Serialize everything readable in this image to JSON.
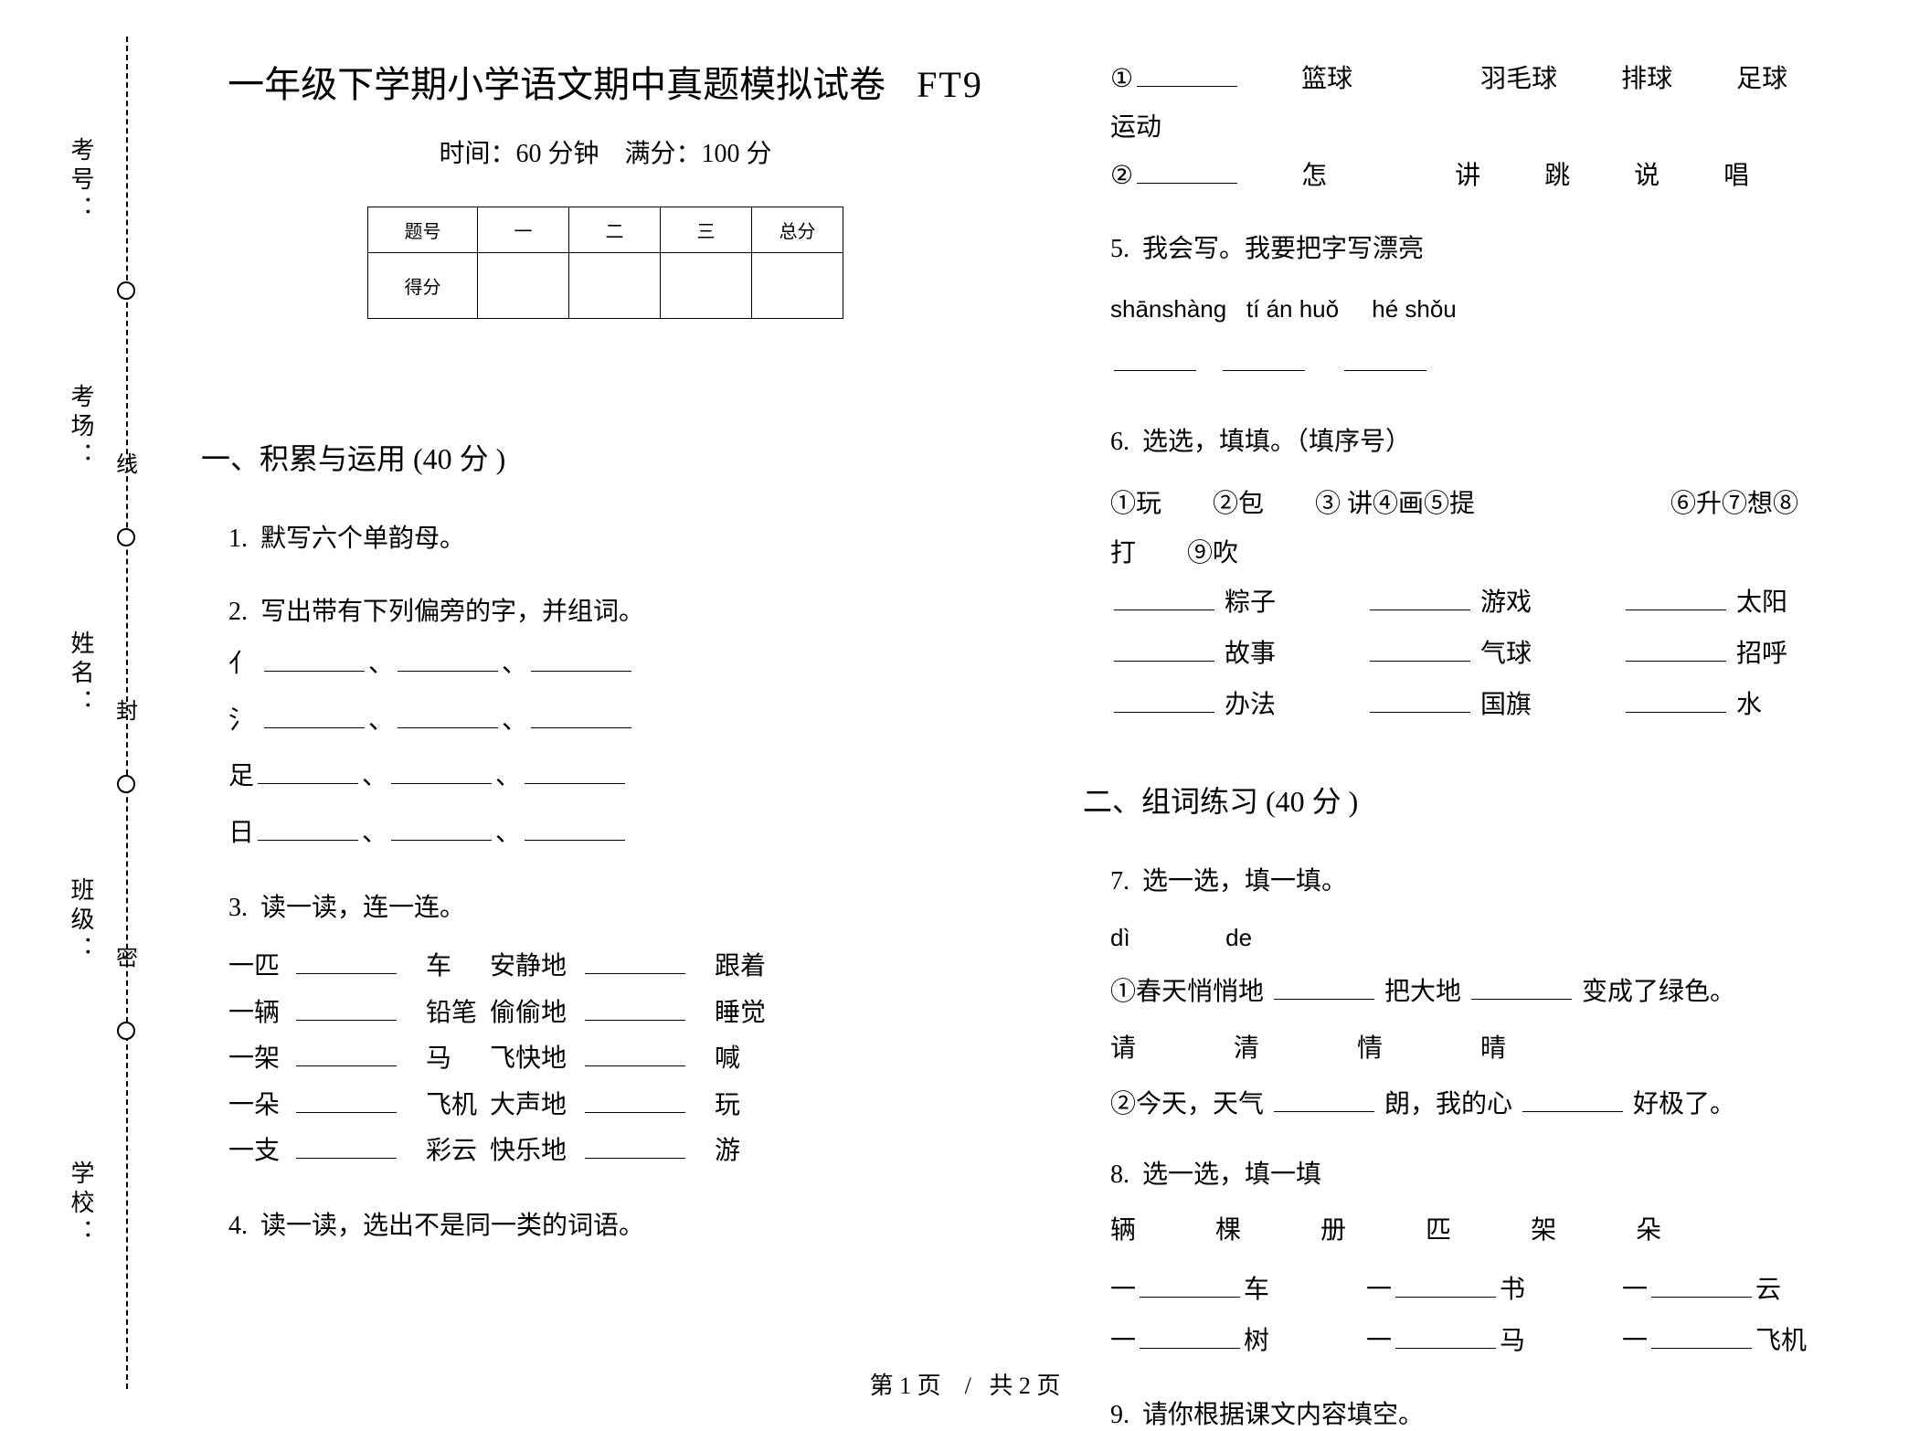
{
  "binding": {
    "labels": [
      "考号：",
      "考场：",
      "姓名：",
      "班级：",
      "学校："
    ],
    "chars": [
      "线",
      "封",
      "密"
    ]
  },
  "header": {
    "title_main": "一年级下学期小学语文期中真题模拟试卷",
    "title_code": "FT9",
    "time_label": "时间：",
    "time_value": "60 分钟",
    "full_label": "满分：",
    "full_value": "100 分"
  },
  "score_table": {
    "headers": [
      "题号",
      "一",
      "二",
      "三",
      "总分"
    ],
    "row_label": "得分"
  },
  "sections": {
    "s1": {
      "title": "一、积累与运用  (40 分 )"
    },
    "s2": {
      "title": "二、组词练习  (40 分 )"
    }
  },
  "q1": {
    "num": "1.",
    "text": "默写六个单韵母。"
  },
  "q2": {
    "num": "2.",
    "text": "写出带有下列偏旁的字，并组词。",
    "rads": [
      "亻",
      "氵",
      "足",
      "日"
    ]
  },
  "q3": {
    "num": "3.",
    "text": "读一读，连一连。",
    "left": [
      "一匹",
      "一辆",
      "一架",
      "一朵",
      "一支"
    ],
    "mid1": [
      "车",
      "铅笔",
      "马",
      "飞机",
      "彩云"
    ],
    "mid2": [
      "安静地",
      "偷偷地",
      "飞快地",
      "大声地",
      "快乐地"
    ],
    "right": [
      "跟着",
      "睡觉",
      "喊",
      "玩",
      "游"
    ]
  },
  "q4": {
    "num": "4.",
    "text": "读一读，选出不是同一类的词语。",
    "row1": [
      "篮球",
      "羽毛球",
      "排球",
      "足球",
      "运动"
    ],
    "row2": [
      "怎",
      "讲",
      "跳",
      "说",
      "唱"
    ]
  },
  "q5": {
    "num": "5.",
    "text": "我会写。我要把字写漂亮",
    "pinyin": [
      "shānshàng",
      "tí án huǒ",
      "hé shǒu"
    ]
  },
  "q6": {
    "num": "6.",
    "text": "选选，填填。（填序号）",
    "choices_a": "①玩　　②包　　③ 讲④画⑤提",
    "choices_b": "⑥升⑦想⑧",
    "choices_c": "打　　⑨吹",
    "words": [
      "粽子",
      "游戏",
      "太阳",
      "故事",
      "气球",
      "招呼",
      "办法",
      "国旗",
      "水"
    ]
  },
  "q7": {
    "num": "7.",
    "text": "选一选，填一填。",
    "p1_a": "dì",
    "p1_b": "de",
    "line1_a": "①春天悄悄地",
    "line1_b": "把大地",
    "line1_c": "变成了绿色。",
    "opts2": [
      "请",
      "清",
      "情",
      "晴"
    ],
    "line2_a": "②今天，天气",
    "line2_b": "朗，我的心",
    "line2_c": "好极了。"
  },
  "q8": {
    "num": "8.",
    "text": "选一选，填一填",
    "opts": [
      "辆",
      "棵",
      "册",
      "匹",
      "架",
      "朵"
    ],
    "items": [
      "车",
      "书",
      "云",
      "树",
      "马",
      "飞机"
    ]
  },
  "q9": {
    "num": "9.",
    "text": "请你根据课文内容填空。"
  },
  "footer": {
    "left": "第 1 页",
    "sep": "/",
    "right": "共 2 页"
  }
}
